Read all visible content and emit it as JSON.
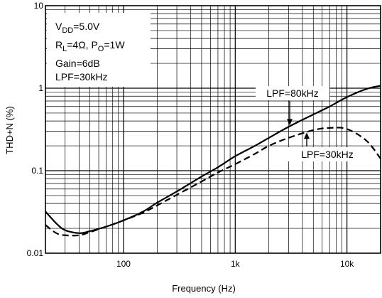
{
  "chart_data": {
    "type": "line",
    "xlabel": "Frequency (Hz)",
    "ylabel": "THD+N (%)",
    "x_scale": "log",
    "y_scale": "log",
    "xlim": [
      20,
      20000
    ],
    "ylim": [
      0.01,
      10
    ],
    "grid": true,
    "x_ticks": [
      {
        "value": 100,
        "label": "100"
      },
      {
        "value": 1000,
        "label": "1k"
      },
      {
        "value": 10000,
        "label": "10k"
      }
    ],
    "y_ticks": [
      {
        "value": 0.01,
        "label": "0.01"
      },
      {
        "value": 0.1,
        "label": "0.1"
      },
      {
        "value": 1,
        "label": "1"
      },
      {
        "value": 10,
        "label": "10"
      }
    ],
    "conditions": [
      {
        "base": "V",
        "sub": "DD",
        "rest": "=5.0V"
      },
      {
        "base": "R",
        "sub": "L",
        "rest": "=4Ω, P",
        "base2": "",
        "sub2": "O",
        "rest2": "=1W"
      },
      {
        "base": "Gain=6dB",
        "sub": "",
        "rest": ""
      },
      {
        "base": "LPF=30kHz",
        "sub": "",
        "rest": ""
      }
    ],
    "series": [
      {
        "name": "LPF=80kHz",
        "style": "solid",
        "x": [
          20,
          25,
          30,
          40,
          50,
          70,
          100,
          150,
          200,
          300,
          500,
          700,
          1000,
          1500,
          2000,
          3000,
          5000,
          7000,
          10000,
          15000,
          20000
        ],
        "y": [
          0.032,
          0.023,
          0.019,
          0.0175,
          0.0185,
          0.021,
          0.025,
          0.032,
          0.041,
          0.056,
          0.085,
          0.11,
          0.15,
          0.2,
          0.25,
          0.34,
          0.48,
          0.6,
          0.78,
          0.98,
          1.07
        ]
      },
      {
        "name": "LPF=30kHz",
        "style": "dashed",
        "x": [
          20,
          25,
          30,
          40,
          50,
          70,
          100,
          150,
          200,
          300,
          500,
          700,
          1000,
          1500,
          2000,
          3000,
          5000,
          7000,
          10000,
          15000,
          20000
        ],
        "y": [
          0.022,
          0.0175,
          0.0165,
          0.0165,
          0.018,
          0.021,
          0.025,
          0.031,
          0.038,
          0.051,
          0.074,
          0.095,
          0.12,
          0.16,
          0.2,
          0.25,
          0.31,
          0.33,
          0.32,
          0.23,
          0.14
        ]
      }
    ],
    "annotations": [
      {
        "text": "LPF=80kHz",
        "target_x": 3000,
        "target_y": 0.34
      },
      {
        "text": "LPF=30kHz",
        "target_x": 5500,
        "target_y": 0.315
      }
    ]
  }
}
